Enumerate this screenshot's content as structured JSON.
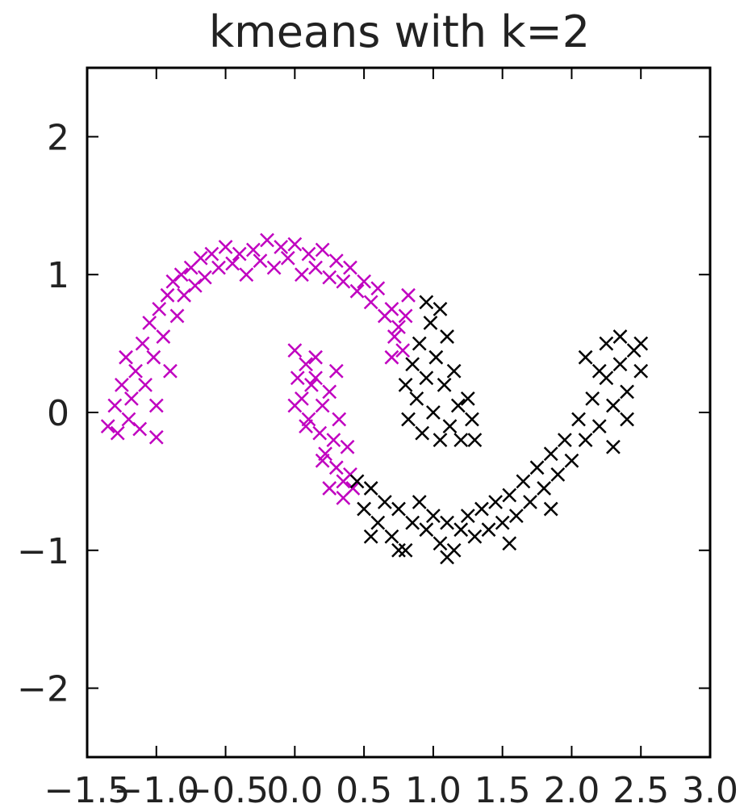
{
  "chart_data": {
    "type": "scatter",
    "title": "kmeans with k=2",
    "xlabel": "",
    "ylabel": "",
    "xlim": [
      -1.5,
      3.0
    ],
    "ylim": [
      -2.5,
      2.5
    ],
    "xticks": [
      -1.5,
      -1.0,
      -0.5,
      0.0,
      0.5,
      1.0,
      1.5,
      2.0,
      2.5,
      3.0
    ],
    "xtick_labels": [
      "−1.5",
      "−1.0",
      "−0.5",
      "0.0",
      "0.5",
      "1.0",
      "1.5",
      "2.0",
      "2.5",
      "3.0"
    ],
    "yticks": [
      2,
      1,
      0,
      -1,
      -2
    ],
    "ytick_labels": [
      "2",
      "1",
      "0",
      "−1",
      "−2"
    ],
    "marker": "x",
    "grid": false,
    "series": [
      {
        "color": "#c000c0",
        "points": [
          [
            -1.35,
            -0.1
          ],
          [
            -1.3,
            0.05
          ],
          [
            -1.28,
            -0.15
          ],
          [
            -1.25,
            0.2
          ],
          [
            -1.22,
            0.4
          ],
          [
            -1.2,
            -0.05
          ],
          [
            -1.18,
            0.1
          ],
          [
            -1.15,
            0.3
          ],
          [
            -1.12,
            -0.12
          ],
          [
            -1.1,
            0.5
          ],
          [
            -1.08,
            0.2
          ],
          [
            -1.05,
            0.65
          ],
          [
            -1.02,
            0.4
          ],
          [
            -1.0,
            -0.18
          ],
          [
            -1.0,
            0.05
          ],
          [
            -0.98,
            0.75
          ],
          [
            -0.95,
            0.55
          ],
          [
            -0.92,
            0.85
          ],
          [
            -0.9,
            0.3
          ],
          [
            -0.88,
            0.95
          ],
          [
            -0.85,
            0.7
          ],
          [
            -0.82,
            1.0
          ],
          [
            -0.8,
            0.85
          ],
          [
            -0.75,
            1.05
          ],
          [
            -0.72,
            0.92
          ],
          [
            -0.68,
            1.12
          ],
          [
            -0.65,
            0.98
          ],
          [
            -0.6,
            1.15
          ],
          [
            -0.55,
            1.05
          ],
          [
            -0.5,
            1.2
          ],
          [
            -0.45,
            1.08
          ],
          [
            -0.4,
            1.15
          ],
          [
            -0.35,
            1.0
          ],
          [
            -0.3,
            1.18
          ],
          [
            -0.25,
            1.1
          ],
          [
            -0.2,
            1.25
          ],
          [
            -0.15,
            1.05
          ],
          [
            -0.1,
            1.2
          ],
          [
            -0.05,
            1.12
          ],
          [
            0.0,
            1.22
          ],
          [
            0.05,
            1.0
          ],
          [
            0.1,
            1.15
          ],
          [
            0.15,
            1.05
          ],
          [
            0.2,
            1.18
          ],
          [
            0.25,
            0.98
          ],
          [
            0.3,
            1.1
          ],
          [
            0.35,
            0.95
          ],
          [
            0.4,
            1.05
          ],
          [
            0.45,
            0.88
          ],
          [
            0.5,
            0.95
          ],
          [
            0.55,
            0.8
          ],
          [
            0.6,
            0.9
          ],
          [
            0.65,
            0.7
          ],
          [
            0.7,
            0.75
          ],
          [
            0.72,
            0.55
          ],
          [
            0.75,
            0.62
          ],
          [
            0.78,
            0.45
          ],
          [
            0.8,
            0.7
          ],
          [
            0.82,
            0.85
          ],
          [
            0.7,
            0.4
          ],
          [
            0.0,
            0.45
          ],
          [
            0.02,
            0.25
          ],
          [
            0.05,
            0.1
          ],
          [
            0.08,
            0.35
          ],
          [
            0.1,
            -0.05
          ],
          [
            0.12,
            0.2
          ],
          [
            0.15,
            0.4
          ],
          [
            0.18,
            -0.15
          ],
          [
            0.2,
            0.05
          ],
          [
            0.22,
            -0.3
          ],
          [
            0.25,
            0.15
          ],
          [
            0.28,
            -0.2
          ],
          [
            0.3,
            -0.4
          ],
          [
            0.32,
            -0.05
          ],
          [
            0.35,
            -0.5
          ],
          [
            0.38,
            -0.25
          ],
          [
            0.4,
            -0.45
          ],
          [
            0.42,
            -0.55
          ],
          [
            0.3,
            0.3
          ],
          [
            0.15,
            0.25
          ],
          [
            0.0,
            0.05
          ],
          [
            0.08,
            -0.1
          ],
          [
            0.2,
            -0.35
          ],
          [
            0.25,
            -0.55
          ],
          [
            0.35,
            -0.62
          ]
        ]
      },
      {
        "color": "#000000",
        "points": [
          [
            0.8,
            0.2
          ],
          [
            0.82,
            -0.05
          ],
          [
            0.85,
            0.35
          ],
          [
            0.88,
            0.1
          ],
          [
            0.9,
            0.5
          ],
          [
            0.92,
            -0.15
          ],
          [
            0.95,
            0.25
          ],
          [
            0.98,
            0.65
          ],
          [
            1.0,
            0.0
          ],
          [
            1.02,
            0.4
          ],
          [
            1.05,
            -0.2
          ],
          [
            1.08,
            0.2
          ],
          [
            1.1,
            0.55
          ],
          [
            1.12,
            -0.1
          ],
          [
            1.15,
            0.3
          ],
          [
            1.18,
            0.05
          ],
          [
            1.2,
            -0.2
          ],
          [
            1.25,
            0.1
          ],
          [
            1.28,
            -0.05
          ],
          [
            1.3,
            -0.2
          ],
          [
            0.95,
            0.8
          ],
          [
            1.05,
            0.75
          ],
          [
            0.45,
            -0.5
          ],
          [
            0.5,
            -0.7
          ],
          [
            0.55,
            -0.55
          ],
          [
            0.6,
            -0.8
          ],
          [
            0.65,
            -0.65
          ],
          [
            0.7,
            -0.9
          ],
          [
            0.75,
            -0.7
          ],
          [
            0.8,
            -1.0
          ],
          [
            0.85,
            -0.8
          ],
          [
            0.9,
            -0.65
          ],
          [
            0.95,
            -0.85
          ],
          [
            1.0,
            -0.75
          ],
          [
            1.05,
            -0.95
          ],
          [
            1.1,
            -0.8
          ],
          [
            1.15,
            -1.0
          ],
          [
            1.2,
            -0.85
          ],
          [
            1.25,
            -0.75
          ],
          [
            1.3,
            -0.9
          ],
          [
            1.35,
            -0.7
          ],
          [
            1.4,
            -0.85
          ],
          [
            1.45,
            -0.65
          ],
          [
            1.5,
            -0.8
          ],
          [
            1.55,
            -0.6
          ],
          [
            1.6,
            -0.75
          ],
          [
            1.65,
            -0.5
          ],
          [
            1.7,
            -0.65
          ],
          [
            1.75,
            -0.4
          ],
          [
            1.8,
            -0.55
          ],
          [
            1.85,
            -0.3
          ],
          [
            1.9,
            -0.45
          ],
          [
            1.95,
            -0.2
          ],
          [
            2.0,
            -0.35
          ],
          [
            2.05,
            -0.05
          ],
          [
            2.1,
            -0.2
          ],
          [
            2.15,
            0.1
          ],
          [
            2.2,
            -0.1
          ],
          [
            2.25,
            0.25
          ],
          [
            2.3,
            0.05
          ],
          [
            2.35,
            0.35
          ],
          [
            2.4,
            0.15
          ],
          [
            2.45,
            0.45
          ],
          [
            2.5,
            0.3
          ],
          [
            2.25,
            0.5
          ],
          [
            2.35,
            0.55
          ],
          [
            2.5,
            0.5
          ],
          [
            2.1,
            0.4
          ],
          [
            2.2,
            0.3
          ],
          [
            2.4,
            -0.05
          ],
          [
            2.3,
            -0.25
          ],
          [
            0.55,
            -0.9
          ],
          [
            0.75,
            -1.0
          ],
          [
            1.1,
            -1.05
          ],
          [
            1.55,
            -0.95
          ],
          [
            1.85,
            -0.7
          ]
        ]
      }
    ]
  }
}
